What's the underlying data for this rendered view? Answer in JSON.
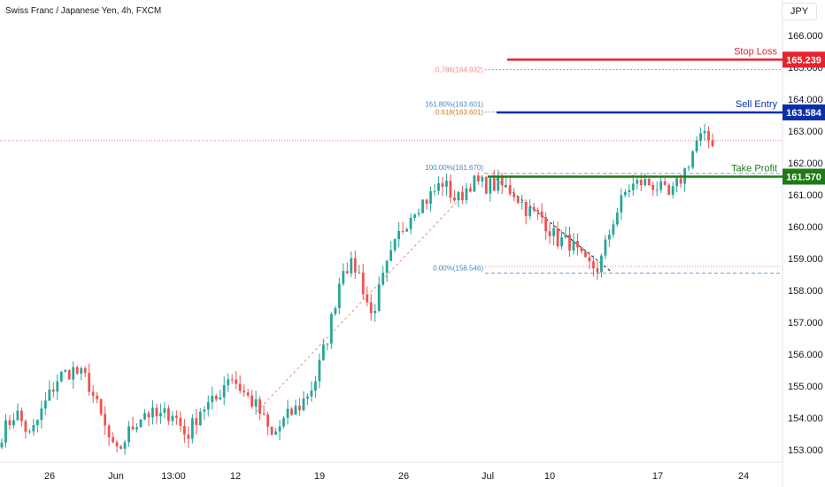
{
  "header": {
    "symbol_title": "Swiss Franc / Japanese Yen, 4h, FXCM"
  },
  "currency_button": {
    "label": "JPY"
  },
  "chart_data": {
    "type": "candlestick",
    "title": "Swiss Franc / Japanese Yen, 4h, FXCM",
    "ylim": [
      152.7,
      166.6
    ],
    "y_ticks": [
      "166.000",
      "165.000",
      "164.000",
      "163.000",
      "162.000",
      "161.000",
      "160.000",
      "159.000",
      "158.000",
      "157.000",
      "156.000",
      "155.000",
      "154.000",
      "153.000"
    ],
    "y_tick_values": [
      166,
      165,
      164,
      163,
      162,
      161,
      160,
      159,
      158,
      157,
      156,
      155,
      154,
      153
    ],
    "x_ticks": [
      "26",
      "Jun",
      "13:00",
      "12",
      "19",
      "26",
      "Jul",
      "10",
      "17",
      "24"
    ],
    "grid": false,
    "colors": {
      "up": "#26a69a",
      "down": "#ef5350",
      "stop": "#e8222c",
      "entry": "#0b2fa8",
      "profit": "#1f7a16"
    },
    "levels": [
      {
        "name": "Stop Loss",
        "value": 165.239,
        "label": "165.239",
        "color": "#e8222c"
      },
      {
        "name": "Sell Entry",
        "value": 163.584,
        "label": "163.584",
        "color": "#0b2fa8"
      },
      {
        "name": "Take Profit",
        "value": 161.57,
        "label": "161.570",
        "color": "#1f7a16"
      }
    ],
    "fib_annotations": [
      {
        "text": "0.786(164.932)",
        "value": 164.932
      },
      {
        "text": "161.80%(163.601)",
        "value": 163.601
      },
      {
        "text": "0.618(163.601)",
        "value": 163.601
      },
      {
        "text": "100.00%(161.670)",
        "value": 161.67
      },
      {
        "text": "0.00%(158.546)",
        "value": 158.546
      }
    ],
    "current_price": 162.7,
    "waypoints": [
      153.5,
      154.2,
      153.4,
      154.4,
      155.3,
      155.5,
      155.2,
      154.0,
      152.8,
      153.6,
      154.2,
      154.0,
      154.2,
      153.4,
      154.3,
      154.5,
      155.4,
      154.8,
      154.3,
      153.4,
      154.0,
      154.4,
      155.1,
      156.7,
      158.8,
      158.7,
      157.2,
      158.6,
      159.8,
      160.6,
      160.9,
      161.4,
      160.8,
      161.4,
      161.3,
      161.3,
      161.1,
      160.5,
      160.3,
      159.6,
      159.5,
      158.8,
      158.7,
      160.2,
      161.2,
      161.4,
      161.3,
      160.9,
      161.7,
      162.8,
      162.7
    ],
    "candle_count": 180
  }
}
